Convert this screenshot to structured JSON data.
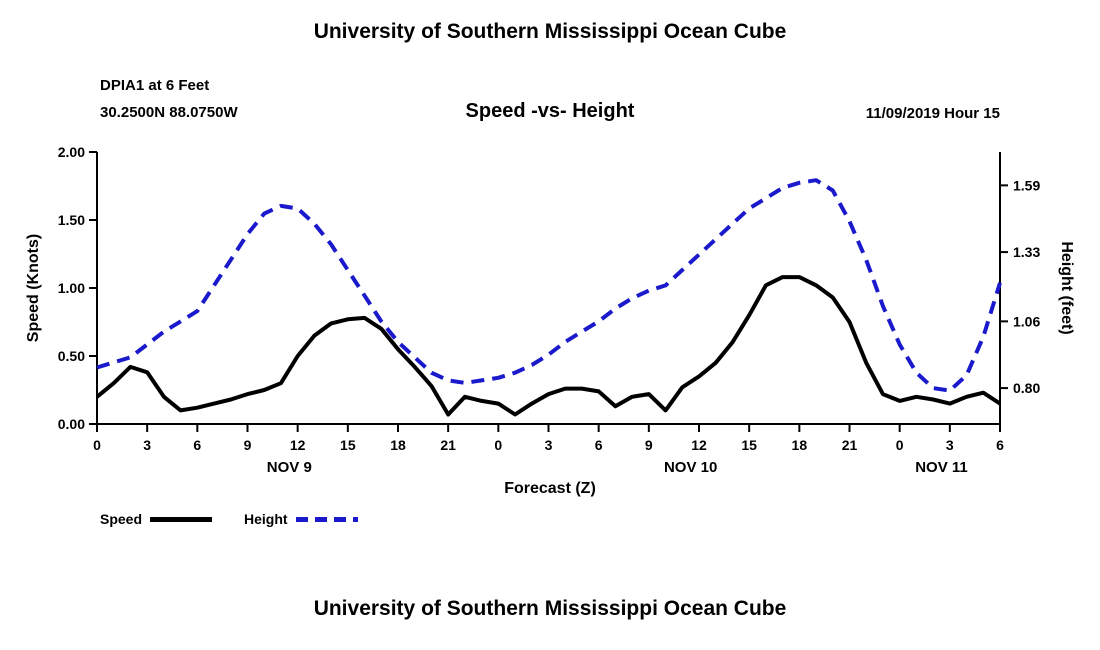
{
  "titles": {
    "top": "University of Southern Mississippi Ocean Cube",
    "bottom": "University of Southern Mississippi Ocean Cube"
  },
  "header": {
    "station": "DPIA1 at 6 Feet",
    "coords": "30.2500N 88.0750W",
    "chart_title": "Speed -vs- Height",
    "datetime": "11/09/2019 Hour 15"
  },
  "colors": {
    "speed": "#000000",
    "height": "#1a1acc"
  },
  "chart_data": {
    "type": "line",
    "title": "Speed -vs- Height",
    "xlabel": "Forecast (Z)",
    "ylabel_left": "Speed (Knots)",
    "ylabel_right": "Height (feet)",
    "xlim": [
      0,
      54
    ],
    "x_tick_hours": [
      0,
      3,
      6,
      9,
      12,
      15,
      18,
      21,
      24,
      27,
      30,
      33,
      36,
      39,
      42,
      45,
      48,
      51,
      54
    ],
    "x_tick_labels": [
      "0",
      "3",
      "6",
      "9",
      "12",
      "15",
      "18",
      "21",
      "0",
      "3",
      "6",
      "9",
      "12",
      "15",
      "18",
      "21",
      "0",
      "3",
      "6"
    ],
    "day_labels": [
      {
        "text": "NOV 9",
        "hour": 11.5
      },
      {
        "text": "NOV 10",
        "hour": 35.5
      },
      {
        "text": "NOV 11",
        "hour": 50.5
      }
    ],
    "left_axis": {
      "ylim": [
        0.0,
        2.0
      ],
      "ticks": [
        0.0,
        0.5,
        1.0,
        1.5,
        2.0
      ],
      "tick_labels": [
        "0.00",
        "0.50",
        "1.00",
        "1.50",
        "2.00"
      ]
    },
    "right_axis": {
      "ylim": [
        0.66,
        1.72
      ],
      "ticks": [
        0.8,
        1.06,
        1.33,
        1.59
      ],
      "tick_labels": [
        "0.80",
        "1.06",
        "1.33",
        "1.59"
      ]
    },
    "series": [
      {
        "name": "Speed",
        "axis": "left",
        "color": "#000000",
        "style": "solid",
        "x": [
          0,
          1,
          2,
          3,
          4,
          5,
          6,
          7,
          8,
          9,
          10,
          11,
          12,
          13,
          14,
          15,
          16,
          17,
          18,
          19,
          20,
          21,
          22,
          23,
          24,
          25,
          26,
          27,
          28,
          29,
          30,
          31,
          32,
          33,
          34,
          35,
          36,
          37,
          38,
          39,
          40,
          41,
          42,
          43,
          44,
          45,
          46,
          47,
          48,
          49,
          50,
          51,
          52,
          53,
          54
        ],
        "values": [
          0.2,
          0.3,
          0.42,
          0.38,
          0.2,
          0.1,
          0.12,
          0.15,
          0.18,
          0.22,
          0.25,
          0.3,
          0.5,
          0.65,
          0.74,
          0.77,
          0.78,
          0.7,
          0.55,
          0.42,
          0.28,
          0.07,
          0.2,
          0.17,
          0.15,
          0.07,
          0.15,
          0.22,
          0.26,
          0.26,
          0.24,
          0.13,
          0.2,
          0.22,
          0.1,
          0.27,
          0.35,
          0.45,
          0.6,
          0.8,
          1.02,
          1.08,
          1.08,
          1.02,
          0.93,
          0.75,
          0.45,
          0.22,
          0.17,
          0.2,
          0.18,
          0.15,
          0.2,
          0.23,
          0.15
        ]
      },
      {
        "name": "Height",
        "axis": "right",
        "color": "#1a1acc",
        "style": "dashed",
        "x": [
          0,
          1,
          2,
          3,
          4,
          5,
          6,
          7,
          8,
          9,
          10,
          11,
          12,
          13,
          14,
          15,
          16,
          17,
          18,
          19,
          20,
          21,
          22,
          23,
          24,
          25,
          26,
          27,
          28,
          29,
          30,
          31,
          32,
          33,
          34,
          35,
          36,
          37,
          38,
          39,
          40,
          41,
          42,
          43,
          44,
          45,
          46,
          47,
          48,
          49,
          50,
          51,
          52,
          53,
          54
        ],
        "values": [
          0.88,
          0.9,
          0.92,
          0.97,
          1.02,
          1.06,
          1.1,
          1.2,
          1.3,
          1.4,
          1.48,
          1.51,
          1.5,
          1.44,
          1.36,
          1.26,
          1.16,
          1.06,
          0.98,
          0.92,
          0.86,
          0.83,
          0.82,
          0.83,
          0.84,
          0.86,
          0.89,
          0.93,
          0.98,
          1.02,
          1.06,
          1.11,
          1.15,
          1.18,
          1.2,
          1.26,
          1.32,
          1.38,
          1.44,
          1.5,
          1.54,
          1.58,
          1.6,
          1.61,
          1.57,
          1.45,
          1.3,
          1.12,
          0.97,
          0.86,
          0.8,
          0.79,
          0.85,
          1.0,
          1.21
        ]
      }
    ],
    "legend": {
      "position": "bottom-left",
      "entries": [
        "Speed",
        "Height"
      ]
    }
  }
}
